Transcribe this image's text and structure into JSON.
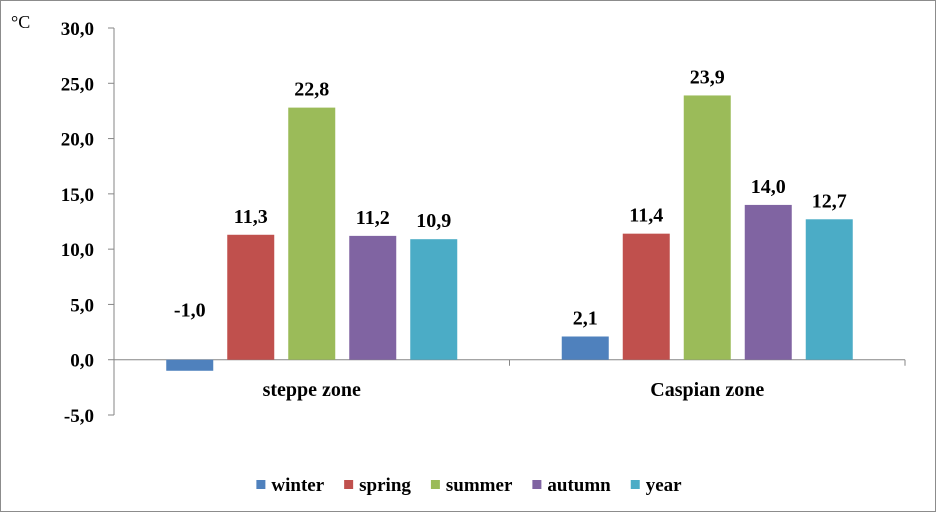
{
  "chart_data": {
    "type": "bar",
    "unit": "°C",
    "categories": [
      "steppe zone",
      "Caspian zone"
    ],
    "series": [
      {
        "name": "winter",
        "color": "#4F81BD",
        "values": [
          -1.0,
          2.1
        ],
        "labels": [
          "-1,0",
          "2,1"
        ]
      },
      {
        "name": "spring",
        "color": "#C0504D",
        "values": [
          11.3,
          11.4
        ],
        "labels": [
          "11,3",
          "11,4"
        ]
      },
      {
        "name": "summer",
        "color": "#9BBB59",
        "values": [
          22.8,
          23.9
        ],
        "labels": [
          "22,8",
          "23,9"
        ]
      },
      {
        "name": "autumn",
        "color": "#8064A2",
        "values": [
          11.2,
          14.0
        ],
        "labels": [
          "11,2",
          "14,0"
        ]
      },
      {
        "name": "year",
        "color": "#4BACC6",
        "values": [
          10.9,
          12.7
        ],
        "labels": [
          "10,9",
          "12,7"
        ]
      }
    ],
    "ylim": [
      -5,
      30
    ],
    "yticks": [
      30,
      25,
      20,
      15,
      10,
      5,
      0,
      -5
    ],
    "ytick_labels": [
      "30,0",
      "25,0",
      "20,0",
      "15,0",
      "10,0",
      "5,0",
      "0,0",
      "-5,0"
    ],
    "grid": false,
    "legend_position": "bottom"
  }
}
